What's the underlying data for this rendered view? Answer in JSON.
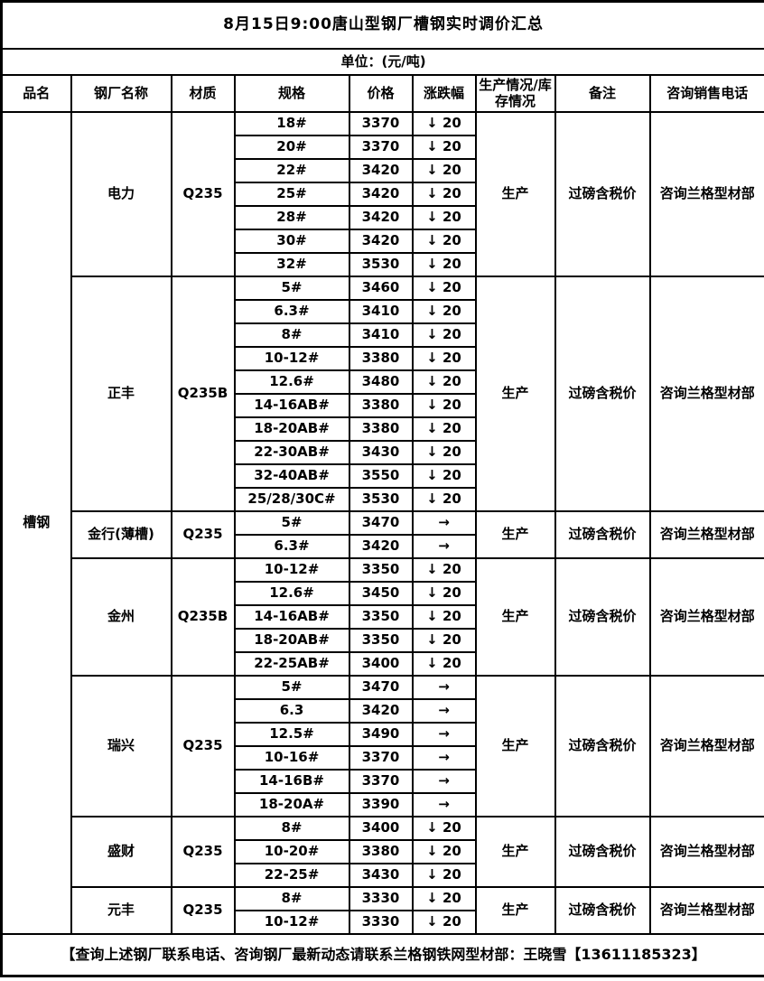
{
  "title": "8月15日9:00唐山型钢厂槽钢实时调价汇总",
  "unit_line": "单位：(元/吨)",
  "columns": [
    "品名",
    "钢厂名称",
    "材质",
    "规格",
    "价格",
    "涨跌幅",
    "生产情况/库存情况",
    "备注",
    "咨询销售电话"
  ],
  "product_name": "槽钢",
  "sections": [
    {
      "mill": "电力",
      "material": "Q235",
      "status": "生产",
      "note": "过磅含税价",
      "phone": "咨询兰格型材部",
      "rows": [
        [
          "18#",
          "3370",
          "↓ 20"
        ],
        [
          "20#",
          "3370",
          "↓ 20"
        ],
        [
          "22#",
          "3420",
          "↓ 20"
        ],
        [
          "25#",
          "3420",
          "↓ 20"
        ],
        [
          "28#",
          "3420",
          "↓ 20"
        ],
        [
          "30#",
          "3420",
          "↓ 20"
        ],
        [
          "32#",
          "3530",
          "↓ 20"
        ]
      ]
    },
    {
      "mill": "正丰",
      "material": "Q235B",
      "status": "生产",
      "note": "过磅含税价",
      "phone": "咨询兰格型材部",
      "rows": [
        [
          "5#",
          "3460",
          "↓ 20"
        ],
        [
          "6.3#",
          "3410",
          "↓ 20"
        ],
        [
          "8#",
          "3410",
          "↓ 20"
        ],
        [
          "10-12#",
          "3380",
          "↓ 20"
        ],
        [
          "12.6#",
          "3480",
          "↓ 20"
        ],
        [
          "14-16AB#",
          "3380",
          "↓ 20"
        ],
        [
          "18-20AB#",
          "3380",
          "↓ 20"
        ],
        [
          "22-30AB#",
          "3430",
          "↓ 20"
        ],
        [
          "32-40AB#",
          "3550",
          "↓ 20"
        ],
        [
          "25/28/30C#",
          "3530",
          "↓ 20"
        ]
      ]
    },
    {
      "mill": "金行(薄槽)",
      "material": "Q235",
      "status": "生产",
      "note": "过磅含税价",
      "phone": "咨询兰格型材部",
      "rows": [
        [
          "5#",
          "3470",
          "→"
        ],
        [
          "6.3#",
          "3420",
          "→"
        ]
      ]
    },
    {
      "mill": "金州",
      "material": "Q235B",
      "status": "生产",
      "note": "过磅含税价",
      "phone": "咨询兰格型材部",
      "rows": [
        [
          "10-12#",
          "3350",
          "↓ 20"
        ],
        [
          "12.6#",
          "3450",
          "↓ 20"
        ],
        [
          "14-16AB#",
          "3350",
          "↓ 20"
        ],
        [
          "18-20AB#",
          "3350",
          "↓ 20"
        ],
        [
          "22-25AB#",
          "3400",
          "↓ 20"
        ]
      ]
    },
    {
      "mill": "瑞兴",
      "material": "Q235",
      "status": "生产",
      "note": "过磅含税价",
      "phone": "咨询兰格型材部",
      "rows": [
        [
          "5#",
          "3470",
          "→"
        ],
        [
          "6.3",
          "3420",
          "→"
        ],
        [
          "12.5#",
          "3490",
          "→"
        ],
        [
          "10-16#",
          "3370",
          "→"
        ],
        [
          "14-16B#",
          "3370",
          "→"
        ],
        [
          "18-20A#",
          "3390",
          "→"
        ]
      ]
    },
    {
      "mill": "盛财",
      "material": "Q235",
      "status": "生产",
      "note": "过磅含税价",
      "phone": "咨询兰格型材部",
      "rows": [
        [
          "8#",
          "3400",
          "↓ 20"
        ],
        [
          "10-20#",
          "3380",
          "↓ 20"
        ],
        [
          "22-25#",
          "3430",
          "↓ 20"
        ]
      ]
    },
    {
      "mill": "元丰",
      "material": "Q235",
      "status": "生产",
      "note": "过磅含税价",
      "phone": "咨询兰格型材部",
      "rows": [
        [
          "8#",
          "3330",
          "↓ 20"
        ],
        [
          "10-12#",
          "3330",
          "↓ 20"
        ]
      ]
    }
  ],
  "footer": "【查询上述钢厂联系电话、咨询钢厂最新动态请联系兰格钢铁网型材部：王晓雪【13611185323】",
  "colors": {
    "text": "#000000",
    "background": "#ffffff",
    "border": "#000000"
  }
}
